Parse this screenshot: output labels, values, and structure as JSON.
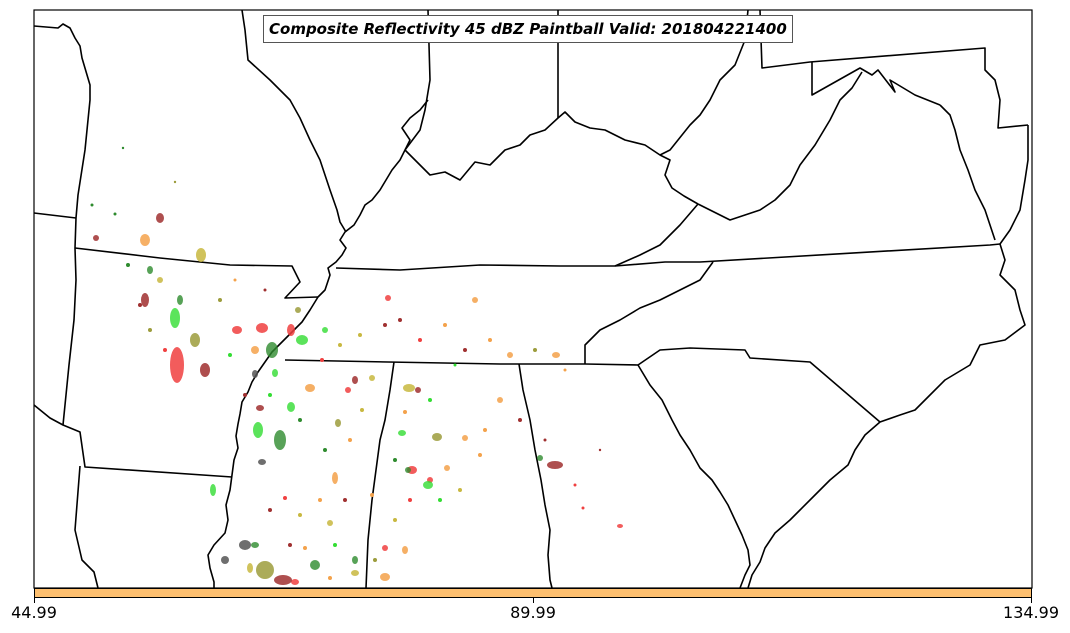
{
  "title": "Composite Reflectivity 45 dBZ Paintball Valid: 201804221400",
  "colorbar": {
    "color": "#fdbf6f",
    "ticks": [
      "44.99",
      "89.99",
      "134.99"
    ]
  },
  "colors": {
    "paint_red": "#f04040",
    "paint_darkred": "#a03030",
    "paint_green": "#33dd33",
    "paint_darkgreen": "#2e8b2e",
    "paint_orange": "#f4a24b",
    "paint_olive": "#9c9c3c",
    "paint_yellow": "#c8b840",
    "paint_gray": "#555555",
    "paint_brown": "#8b5a2b"
  }
}
